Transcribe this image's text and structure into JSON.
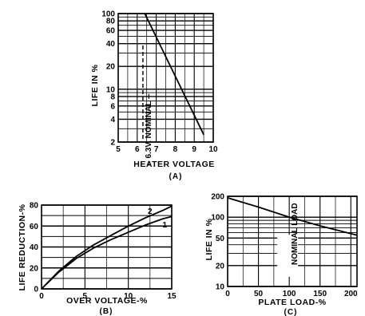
{
  "chart_data": [
    {
      "type": "line",
      "caption": "(A)",
      "xlabel": "HEATER VOLTAGE",
      "ylabel": "LIFE IN %",
      "xlim": [
        5,
        10
      ],
      "ylim": [
        2,
        100
      ],
      "yscale": "log",
      "grid": true,
      "xticks": [
        5,
        6,
        7,
        8,
        9,
        10
      ],
      "yticks": [
        2,
        4,
        6,
        8,
        10,
        20,
        40,
        60,
        80,
        100
      ],
      "annotation": "-- 6.3V. NOMINAL --",
      "series": [
        {
          "x": [
            6.4,
            9.5
          ],
          "y": [
            100,
            2.5
          ]
        }
      ]
    },
    {
      "type": "line",
      "caption": "(B)",
      "xlabel": "OVER VOLTAGE-%",
      "ylabel": "LIFE REDUCTION-%",
      "xlim": [
        0,
        15
      ],
      "ylim": [
        0,
        80
      ],
      "grid": true,
      "xticks": [
        0,
        5,
        10,
        15
      ],
      "yticks": [
        0,
        20,
        40,
        60,
        80
      ],
      "series": [
        {
          "name": "1",
          "x": [
            0,
            2,
            4,
            6,
            8,
            10,
            12,
            14,
            15
          ],
          "y": [
            0,
            16,
            29,
            39,
            47,
            54,
            61,
            67,
            69
          ]
        },
        {
          "name": "2",
          "x": [
            0,
            2,
            4,
            6,
            8,
            10,
            12,
            14,
            15
          ],
          "y": [
            0,
            17,
            31,
            42,
            51,
            60,
            68,
            75,
            79
          ]
        }
      ]
    },
    {
      "type": "line",
      "caption": "(C)",
      "xlabel": "PLATE LOAD-%",
      "ylabel": "LIFE IN %",
      "xlim": [
        0,
        210
      ],
      "ylim": [
        10,
        200
      ],
      "yscale": "log",
      "grid": true,
      "xticks": [
        0,
        50,
        100,
        150,
        200
      ],
      "yticks": [
        10,
        20,
        50,
        100,
        200
      ],
      "annotation": "NOMINAL LOAD",
      "series": [
        {
          "x": [
            0,
            50,
            100,
            150,
            210
          ],
          "y": [
            190,
            140,
            100,
            75,
            55
          ]
        }
      ]
    }
  ]
}
